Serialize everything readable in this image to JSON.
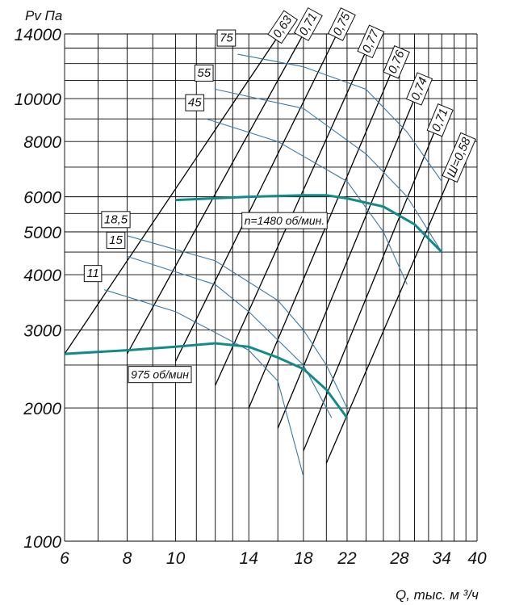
{
  "chart_data": {
    "type": "line",
    "xscale": "log",
    "yscale": "log",
    "xlim": [
      6,
      40
    ],
    "ylim": [
      1000,
      14000
    ],
    "grid": true,
    "ylabel": "Pv Па",
    "xlabel": "Q, тыс. м ³/ч",
    "x_ticks": [
      6,
      8,
      10,
      14,
      18,
      22,
      28,
      34,
      40
    ],
    "y_ticks": [
      1000,
      2000,
      3000,
      4000,
      5000,
      6000,
      8000,
      10000,
      14000
    ],
    "x_grid": [
      6,
      7,
      8,
      9,
      10,
      11,
      12,
      13,
      14,
      16,
      18,
      20,
      22,
      24,
      26,
      28,
      30,
      32,
      34,
      36,
      38,
      40
    ],
    "y_grid": [
      1000,
      2000,
      2500,
      3000,
      3500,
      4000,
      4500,
      5000,
      5500,
      6000,
      7000,
      8000,
      9000,
      10000,
      11000,
      12000,
      13000,
      14000
    ],
    "rpm_curves": [
      {
        "label": "n=1480 об/мин.",
        "points": [
          [
            10,
            5900
          ],
          [
            14,
            6000
          ],
          [
            18,
            6050
          ],
          [
            20,
            6050
          ],
          [
            22,
            5950
          ],
          [
            26,
            5700
          ],
          [
            30,
            5200
          ],
          [
            34,
            4500
          ]
        ]
      },
      {
        "label": "975 об/мин",
        "points": [
          [
            6,
            2650
          ],
          [
            8,
            2700
          ],
          [
            10,
            2750
          ],
          [
            12,
            2800
          ],
          [
            14,
            2750
          ],
          [
            16,
            2600
          ],
          [
            18,
            2450
          ],
          [
            20,
            2200
          ],
          [
            22,
            1900
          ]
        ]
      }
    ],
    "power_curves": [
      {
        "label": "75",
        "points": [
          [
            13.3,
            12600
          ],
          [
            18,
            11800
          ],
          [
            24,
            10500
          ],
          [
            29,
            8400
          ],
          [
            34,
            6500
          ]
        ]
      },
      {
        "label": "55",
        "points": [
          [
            12,
            10500
          ],
          [
            18,
            9500
          ],
          [
            24,
            7500
          ],
          [
            29,
            6000
          ],
          [
            34,
            4500
          ]
        ]
      },
      {
        "label": "45",
        "points": [
          [
            11.5,
            9000
          ],
          [
            16,
            8000
          ],
          [
            22,
            6500
          ],
          [
            26,
            5000
          ],
          [
            29,
            3800
          ]
        ]
      },
      {
        "label": "18,5",
        "points": [
          [
            8,
            4900
          ],
          [
            12,
            4300
          ],
          [
            16,
            3500
          ],
          [
            18,
            3000
          ],
          [
            20,
            2500
          ],
          [
            22,
            2000
          ]
        ]
      },
      {
        "label": "15",
        "points": [
          [
            8,
            4400
          ],
          [
            12,
            3800
          ],
          [
            14,
            3300
          ],
          [
            18,
            2500
          ],
          [
            20,
            2000
          ],
          [
            20.5,
            1900
          ]
        ]
      },
      {
        "label": "11",
        "points": [
          [
            7.2,
            3700
          ],
          [
            10,
            3300
          ],
          [
            14,
            2700
          ],
          [
            16,
            2300
          ],
          [
            18,
            1400
          ]
        ]
      }
    ],
    "efficiency_lines": [
      {
        "label": "0,63",
        "points": [
          [
            6,
            2650
          ],
          [
            16,
            13800
          ]
        ]
      },
      {
        "label": "0,71",
        "points": [
          [
            8,
            2650
          ],
          [
            18,
            14000
          ]
        ]
      },
      {
        "label": "0,75",
        "points": [
          [
            10,
            2550
          ],
          [
            21,
            14000
          ]
        ]
      },
      {
        "label": "0,77",
        "points": [
          [
            12,
            2250
          ],
          [
            24,
            12800
          ]
        ]
      },
      {
        "label": "0,76",
        "points": [
          [
            14,
            2000
          ],
          [
            27,
            11500
          ]
        ]
      },
      {
        "label": "0,74",
        "points": [
          [
            16,
            1800
          ],
          [
            30,
            10000
          ]
        ]
      },
      {
        "label": "0,71",
        "points": [
          [
            18,
            1600
          ],
          [
            33,
            8500
          ]
        ]
      },
      {
        "label": "Ш=0,58",
        "points": [
          [
            20,
            1500
          ],
          [
            36,
            7000
          ]
        ]
      }
    ],
    "colors": {
      "rpm": "#138a8a",
      "power": "#3a7aa6",
      "grid": "#000000",
      "efficiency": "#000000"
    }
  }
}
